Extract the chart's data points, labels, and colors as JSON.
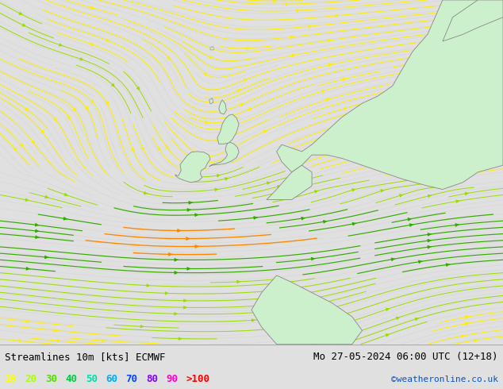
{
  "title_left": "Streamlines 10m [kts] ECMWF",
  "title_right": "Mo 27-05-2024 06:00 UTC (12+18)",
  "credit": "©weatheronline.co.uk",
  "legend_values": [
    "10",
    "20",
    "30",
    "40",
    "50",
    "60",
    "70",
    "80",
    "90",
    ">100"
  ],
  "legend_colors": [
    "#ffff00",
    "#aaff00",
    "#55dd00",
    "#00cc44",
    "#00ddaa",
    "#00aaff",
    "#0044ff",
    "#8800ff",
    "#ff00cc",
    "#ff0000"
  ],
  "bg_color": "#e0e0e0",
  "land_color": "#ccf0cc",
  "coast_color": "#888888",
  "fig_width": 6.34,
  "fig_height": 4.9,
  "dpi": 100,
  "bottom_bar_color": "#ffffff",
  "text_color": "#000000",
  "font_size_title": 9,
  "font_size_legend": 9,
  "font_size_credit": 8,
  "streamline_bg_color": "#cccccc",
  "streamline_lw": 0.7,
  "contour_lw": 0.5
}
